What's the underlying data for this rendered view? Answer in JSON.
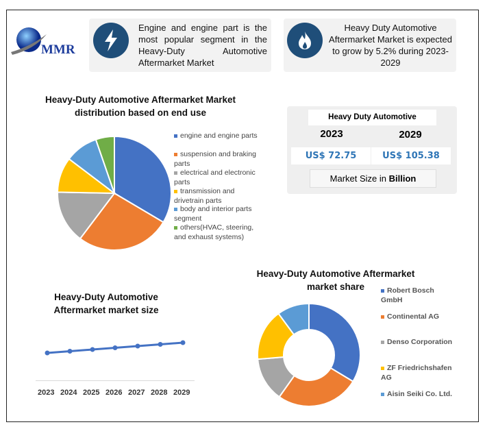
{
  "logo": {
    "text": "MMR"
  },
  "card1": {
    "icon": "lightning-bolt-icon",
    "text": "Engine and engine part is the most popular segment in the Heavy-Duty Automotive Aftermarket Market"
  },
  "card2": {
    "icon": "flame-icon",
    "text": "Heavy Duty Automotive Aftermarket Market is expected to grow by 5.2% during 2023-2029"
  },
  "market_size": {
    "title": "Heavy Duty Automotive",
    "year1": "2023",
    "year2": "2029",
    "value1": "US$ 72.75",
    "value2": "US$ 105.38",
    "caption_prefix": "Market Size in ",
    "caption_bold": "Billion",
    "accent": "#2e75b6"
  },
  "chart_data": [
    {
      "type": "pie",
      "title": "Heavy-Duty Automotive Aftermarket Market distribution based on end use",
      "categories": [
        "engine and engine parts",
        "suspension and braking parts",
        "electrical and electronic parts",
        "transmission and drivetrain parts",
        "body and interior parts segment",
        "others(HVAC, steering, and exhaust systems)"
      ],
      "values": [
        33.5,
        26.8,
        15.0,
        10.0,
        9.4,
        5.3
      ],
      "colors": [
        "#4472c4",
        "#ed7d31",
        "#a5a5a5",
        "#ffc000",
        "#5b9bd5",
        "#70ad47"
      ],
      "legend": "right"
    },
    {
      "type": "line",
      "title": "Heavy-Duty Automotive Aftermarket  market size",
      "categories": [
        "2023",
        "2024",
        "2025",
        "2026",
        "2027",
        "2028",
        "2029"
      ],
      "values": [
        72.75,
        78.2,
        83.6,
        89.1,
        94.5,
        99.9,
        105.38
      ],
      "color": "#4472c4",
      "grid": false
    },
    {
      "type": "pie",
      "subtype": "donut",
      "title": "Heavy-Duty Automotive Aftermarket market share",
      "categories": [
        "Robert Bosch GmbH",
        "Continental AG",
        "Denso Corporation",
        "ZF Friedrichshafen AG",
        "Aisin Seiki Co. Ltd."
      ],
      "values": [
        33.6,
        26.2,
        13.9,
        16.2,
        10.1
      ],
      "colors": [
        "#4472c4",
        "#ed7d31",
        "#a5a5a5",
        "#ffc000",
        "#5b9bd5"
      ],
      "legend": "right"
    }
  ]
}
